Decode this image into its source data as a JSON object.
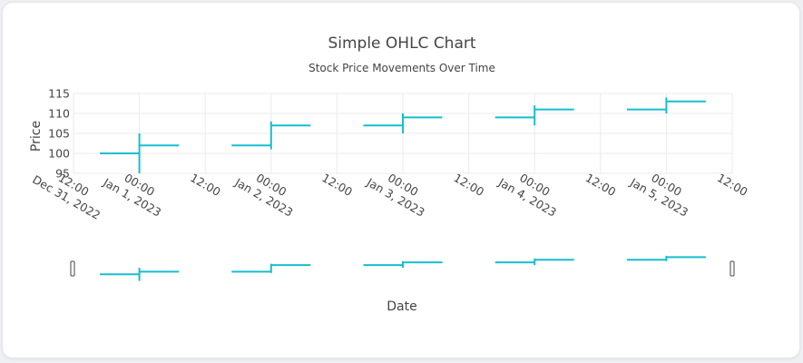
{
  "chart_data": {
    "type": "ohlc",
    "title": "Simple OHLC Chart",
    "subtitle": "Stock Price Movements Over Time",
    "xlabel": "Date",
    "ylabel": "Price",
    "ylim": [
      95,
      115
    ],
    "y_ticks": [
      "95",
      "100",
      "105",
      "110",
      "115"
    ],
    "x_ticks": [
      {
        "line1": "12:00",
        "line2": "Dec 31, 2022"
      },
      {
        "line1": "00:00",
        "line2": "Jan 1, 2023"
      },
      {
        "line1": "12:00",
        "line2": ""
      },
      {
        "line1": "00:00",
        "line2": "Jan 2, 2023"
      },
      {
        "line1": "12:00",
        "line2": ""
      },
      {
        "line1": "00:00",
        "line2": "Jan 3, 2023"
      },
      {
        "line1": "12:00",
        "line2": ""
      },
      {
        "line1": "00:00",
        "line2": "Jan 4, 2023"
      },
      {
        "line1": "12:00",
        "line2": ""
      },
      {
        "line1": "00:00",
        "line2": "Jan 5, 2023"
      },
      {
        "line1": "12:00",
        "line2": ""
      }
    ],
    "grid": true,
    "rangeslider": true,
    "color": "#17becf",
    "data": [
      {
        "date": "2023-01-01",
        "open": 100,
        "high": 105,
        "low": 95,
        "close": 102
      },
      {
        "date": "2023-01-02",
        "open": 102,
        "high": 108,
        "low": 101,
        "close": 107
      },
      {
        "date": "2023-01-03",
        "open": 107,
        "high": 110,
        "low": 105,
        "close": 109
      },
      {
        "date": "2023-01-04",
        "open": 109,
        "high": 112,
        "low": 107,
        "close": 111
      },
      {
        "date": "2023-01-05",
        "open": 111,
        "high": 114,
        "low": 110,
        "close": 113
      }
    ]
  }
}
